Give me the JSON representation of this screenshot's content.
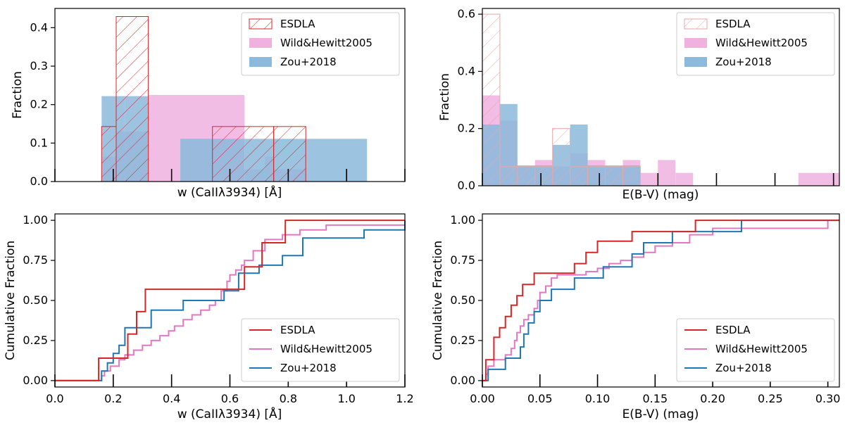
{
  "colors": {
    "esdla": "#d62728",
    "wild": "#e377c2",
    "zou": "#1f77b4",
    "wild_fill": "#f0b1df",
    "zou_fill": "#8bbadc"
  },
  "chart_data": [
    {
      "id": "hist_w",
      "type": "bar",
      "title": "",
      "xlabel": "w (CaIIλ3934) [Å]",
      "ylabel": "Fraction",
      "xlim": [
        0.0,
        1.2
      ],
      "ylim": [
        0.0,
        0.45
      ],
      "yticks": [
        0.0,
        0.1,
        0.2,
        0.3,
        0.4
      ],
      "ytick_labels": [
        "0.0",
        "0.1",
        "0.2",
        "0.3",
        "0.4"
      ],
      "xticks": [
        0.0,
        0.2,
        0.4,
        0.6,
        0.8,
        1.0,
        1.2
      ],
      "xtick_labels": [],
      "legend_loc": "top-right",
      "legend": [
        "ESDLA",
        "Wild&Hewitt2005",
        "Zou+2018"
      ],
      "series": [
        {
          "name": "Wild&Hewitt2005",
          "style": "fill",
          "bins": [
            [
              0.16,
              0.21,
              0.065
            ],
            [
              0.21,
              0.32,
              0.13
            ],
            [
              0.32,
              0.65,
              0.225
            ],
            [
              0.65,
              0.72,
              0.032
            ],
            [
              0.72,
              0.75,
              0.065
            ],
            [
              0.75,
              0.86,
              0.032
            ]
          ]
        },
        {
          "name": "Zou+2018",
          "style": "fill",
          "bins": [
            [
              0.16,
              0.24,
              0.222
            ],
            [
              0.24,
              0.32,
              0.222
            ],
            [
              0.43,
              0.65,
              0.111
            ],
            [
              0.65,
              0.86,
              0.111
            ],
            [
              0.86,
              1.07,
              0.111
            ]
          ]
        },
        {
          "name": "ESDLA",
          "style": "hatch",
          "bins": [
            [
              0.16,
              0.21,
              0.143
            ],
            [
              0.21,
              0.32,
              0.429
            ],
            [
              0.54,
              0.75,
              0.143
            ],
            [
              0.75,
              0.86,
              0.143
            ]
          ]
        }
      ]
    },
    {
      "id": "hist_ebv",
      "type": "bar",
      "title": "",
      "xlabel": "E(B-V) (mag)",
      "ylabel": "Fraction",
      "xlim": [
        0.0,
        0.305
      ],
      "ylim": [
        0.0,
        0.62
      ],
      "yticks": [
        0.0,
        0.2,
        0.4,
        0.6
      ],
      "ytick_labels": [
        "0.0",
        "0.2",
        "0.4",
        "0.6"
      ],
      "xticks": [
        0.0,
        0.05,
        0.1,
        0.15,
        0.2,
        0.25,
        0.3
      ],
      "xtick_labels": [],
      "legend_loc": "top-right",
      "legend": [
        "ESDLA",
        "Wild&Hewitt2005",
        "Zou+2018"
      ],
      "series": [
        {
          "name": "Wild&Hewitt2005",
          "style": "fill",
          "bins": [
            [
              0.0,
              0.015,
              0.316
            ],
            [
              0.015,
              0.03,
              0.227
            ],
            [
              0.03,
              0.045,
              0.068
            ],
            [
              0.045,
              0.06,
              0.09
            ],
            [
              0.06,
              0.075,
              0.068
            ],
            [
              0.075,
              0.09,
              0.114
            ],
            [
              0.09,
              0.105,
              0.09
            ],
            [
              0.105,
              0.12,
              0.068
            ],
            [
              0.12,
              0.135,
              0.09
            ],
            [
              0.135,
              0.15,
              0.045
            ],
            [
              0.15,
              0.165,
              0.09
            ],
            [
              0.165,
              0.18,
              0.045
            ],
            [
              0.27,
              0.305,
              0.045
            ]
          ]
        },
        {
          "name": "Zou+2018",
          "style": "fill",
          "bins": [
            [
              0.0,
              0.015,
              0.214
            ],
            [
              0.015,
              0.03,
              0.286
            ],
            [
              0.03,
              0.045,
              0.071
            ],
            [
              0.045,
              0.06,
              0.071
            ],
            [
              0.06,
              0.075,
              0.143
            ],
            [
              0.075,
              0.09,
              0.214
            ],
            [
              0.09,
              0.105,
              0.071
            ],
            [
              0.105,
              0.12,
              0.071
            ],
            [
              0.12,
              0.135,
              0.071
            ]
          ]
        },
        {
          "name": "ESDLA",
          "style": "hatch",
          "bins": [
            [
              0.0,
              0.015,
              0.6
            ],
            [
              0.015,
              0.03,
              0.067
            ],
            [
              0.03,
              0.045,
              0.067
            ],
            [
              0.045,
              0.06,
              0.067
            ],
            [
              0.06,
              0.075,
              0.2
            ],
            [
              0.075,
              0.09,
              0.067
            ],
            [
              0.09,
              0.105,
              0.067
            ],
            [
              0.105,
              0.12,
              0.067
            ],
            [
              0.12,
              0.135,
              0.067
            ]
          ]
        }
      ]
    },
    {
      "id": "cdf_w",
      "type": "line",
      "title": "",
      "xlabel": "w (CaIIλ3934) [Å]",
      "ylabel": "Cumulative Fraction",
      "xlim": [
        0.0,
        1.2
      ],
      "ylim": [
        -0.04,
        1.04
      ],
      "yticks": [
        0.0,
        0.25,
        0.5,
        0.75,
        1.0
      ],
      "ytick_labels": [
        "0.00",
        "0.25",
        "0.50",
        "0.75",
        "1.00"
      ],
      "xticks": [
        0.0,
        0.2,
        0.4,
        0.6,
        0.8,
        1.0,
        1.2
      ],
      "xtick_labels": [
        "0.0",
        "0.2",
        "0.4",
        "0.6",
        "0.8",
        "1.0",
        "1.2"
      ],
      "legend_loc": "bottom-right",
      "legend": [
        "ESDLA",
        "Wild&Hewitt2005",
        "Zou+2018"
      ],
      "series": [
        {
          "name": "Wild&Hewitt2005",
          "x": [
            0.0,
            0.16,
            0.17,
            0.19,
            0.22,
            0.24,
            0.27,
            0.3,
            0.33,
            0.36,
            0.39,
            0.41,
            0.44,
            0.47,
            0.5,
            0.53,
            0.55,
            0.57,
            0.59,
            0.6,
            0.62,
            0.64,
            0.65,
            0.68,
            0.72,
            0.78,
            0.84,
            0.93,
            1.2
          ],
          "y": [
            0.0,
            0.03,
            0.06,
            0.09,
            0.13,
            0.16,
            0.19,
            0.22,
            0.25,
            0.28,
            0.31,
            0.34,
            0.38,
            0.41,
            0.44,
            0.47,
            0.5,
            0.56,
            0.62,
            0.66,
            0.69,
            0.72,
            0.75,
            0.81,
            0.88,
            0.91,
            0.94,
            0.97,
            1.0
          ]
        },
        {
          "name": "Zou+2018",
          "x": [
            0.0,
            0.16,
            0.18,
            0.2,
            0.22,
            0.24,
            0.33,
            0.44,
            0.58,
            0.63,
            0.7,
            0.78,
            0.85,
            1.06,
            1.2
          ],
          "y": [
            0.0,
            0.06,
            0.11,
            0.17,
            0.22,
            0.33,
            0.44,
            0.5,
            0.56,
            0.67,
            0.72,
            0.78,
            0.89,
            0.94,
            1.0
          ]
        },
        {
          "name": "ESDLA",
          "x": [
            0.0,
            0.15,
            0.23,
            0.25,
            0.28,
            0.31,
            0.6,
            0.65,
            0.71,
            0.79,
            1.2
          ],
          "y": [
            0.0,
            0.14,
            0.14,
            0.29,
            0.43,
            0.57,
            0.57,
            0.71,
            0.86,
            1.0,
            1.0
          ]
        }
      ]
    },
    {
      "id": "cdf_ebv",
      "type": "line",
      "title": "",
      "xlabel": "E(B-V) (mag)",
      "ylabel": "Cumulative Fraction",
      "xlim": [
        0.0,
        0.31
      ],
      "ylim": [
        -0.04,
        1.04
      ],
      "yticks": [
        0.0,
        0.25,
        0.5,
        0.75,
        1.0
      ],
      "ytick_labels": [
        "0.00",
        "0.25",
        "0.50",
        "0.75",
        "1.00"
      ],
      "xticks": [
        0.0,
        0.05,
        0.1,
        0.15,
        0.2,
        0.25,
        0.3
      ],
      "xtick_labels": [
        "0.00",
        "0.05",
        "0.10",
        "0.15",
        "0.20",
        "0.25",
        "0.30"
      ],
      "legend_loc": "bottom-right",
      "legend": [
        "ESDLA",
        "Wild&Hewitt2005",
        "Zou+2018"
      ],
      "series": [
        {
          "name": "Wild&Hewitt2005",
          "x": [
            0.0,
            0.003,
            0.005,
            0.01,
            0.02,
            0.025,
            0.028,
            0.03,
            0.033,
            0.036,
            0.04,
            0.045,
            0.048,
            0.05,
            0.055,
            0.06,
            0.065,
            0.09,
            0.1,
            0.11,
            0.12,
            0.13,
            0.14,
            0.15,
            0.165,
            0.18,
            0.2,
            0.3
          ],
          "y": [
            0.0,
            0.04,
            0.09,
            0.13,
            0.16,
            0.2,
            0.25,
            0.3,
            0.34,
            0.38,
            0.41,
            0.45,
            0.5,
            0.55,
            0.59,
            0.64,
            0.66,
            0.68,
            0.7,
            0.73,
            0.75,
            0.77,
            0.8,
            0.84,
            0.86,
            0.91,
            0.95,
            1.0
          ]
        },
        {
          "name": "Zou+2018",
          "x": [
            0.0,
            0.005,
            0.02,
            0.033,
            0.036,
            0.04,
            0.045,
            0.05,
            0.06,
            0.08,
            0.105,
            0.13,
            0.14,
            0.15,
            0.165,
            0.225,
            0.31
          ],
          "y": [
            0.0,
            0.07,
            0.14,
            0.21,
            0.29,
            0.36,
            0.43,
            0.5,
            0.57,
            0.64,
            0.71,
            0.79,
            0.86,
            0.86,
            0.93,
            1.0,
            1.0
          ]
        },
        {
          "name": "ESDLA",
          "x": [
            0.0,
            0.003,
            0.01,
            0.015,
            0.02,
            0.025,
            0.03,
            0.035,
            0.045,
            0.065,
            0.08,
            0.09,
            0.1,
            0.11,
            0.13,
            0.185,
            0.31
          ],
          "y": [
            0.0,
            0.13,
            0.27,
            0.33,
            0.4,
            0.47,
            0.53,
            0.6,
            0.67,
            0.67,
            0.73,
            0.8,
            0.87,
            0.87,
            0.93,
            1.0,
            1.0
          ]
        }
      ]
    }
  ]
}
